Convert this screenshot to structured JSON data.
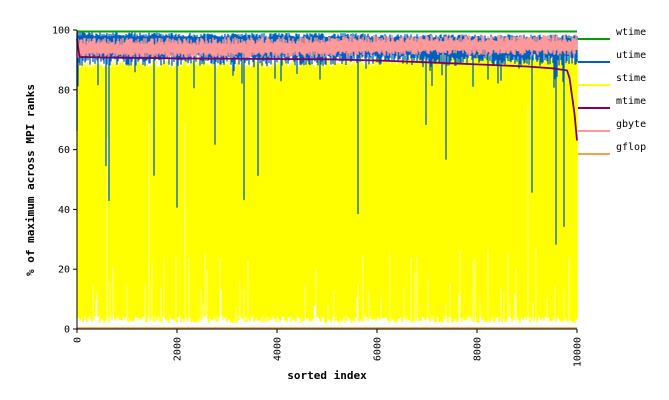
{
  "chart_data": {
    "type": "line",
    "title": "",
    "xlabel": "sorted index",
    "ylabel": "% of maximum across MPI ranks",
    "xlim": [
      0,
      10000
    ],
    "ylim": [
      0,
      100
    ],
    "xticks": [
      "0",
      "2000",
      "4000",
      "6000",
      "8000",
      "10000"
    ],
    "yticks": [
      "0",
      "20",
      "40",
      "60",
      "80",
      "100"
    ],
    "grid": false,
    "legend_position": "right",
    "series": [
      {
        "name": "wtime",
        "color": "#00a000",
        "style": "near-constant line just below maximum",
        "x": [
          0,
          10000
        ],
        "y": [
          99.5,
          99.5
        ]
      },
      {
        "name": "utime",
        "color": "#0060c0",
        "style": "dense noisy band",
        "x": [
          0,
          2500,
          5000,
          7500,
          10000
        ],
        "y": [
          98,
          97.5,
          97.5,
          97,
          97
        ]
      },
      {
        "name": "stime",
        "color": "#ffff00",
        "style": "dense noisy band",
        "x": [
          0,
          2500,
          5000,
          7500,
          10000
        ],
        "y": [
          90,
          90,
          90,
          92,
          92
        ]
      },
      {
        "name": "mtime",
        "color": "#800060",
        "style": "sorted descending curve",
        "x": [
          0,
          50,
          500,
          2000,
          4000,
          5000,
          6000,
          7000,
          8000,
          9000,
          9500,
          9800,
          9850,
          9900,
          9950,
          10000
        ],
        "y": [
          97,
          91,
          90.8,
          90.5,
          90.3,
          90.2,
          89.8,
          89.2,
          88.5,
          87.8,
          87.2,
          86.5,
          84,
          78,
          72,
          63
        ]
      },
      {
        "name": "gbyte",
        "color": "#ff9999",
        "style": "dense noisy band",
        "x": [
          0,
          2500,
          5000,
          7500,
          10000
        ],
        "y": [
          95,
          95,
          95.5,
          96,
          96
        ]
      },
      {
        "name": "gflop",
        "color": "#ffa040",
        "style": "flat line",
        "x": [
          0,
          10000
        ],
        "y": [
          0.3,
          0.3
        ]
      }
    ]
  }
}
